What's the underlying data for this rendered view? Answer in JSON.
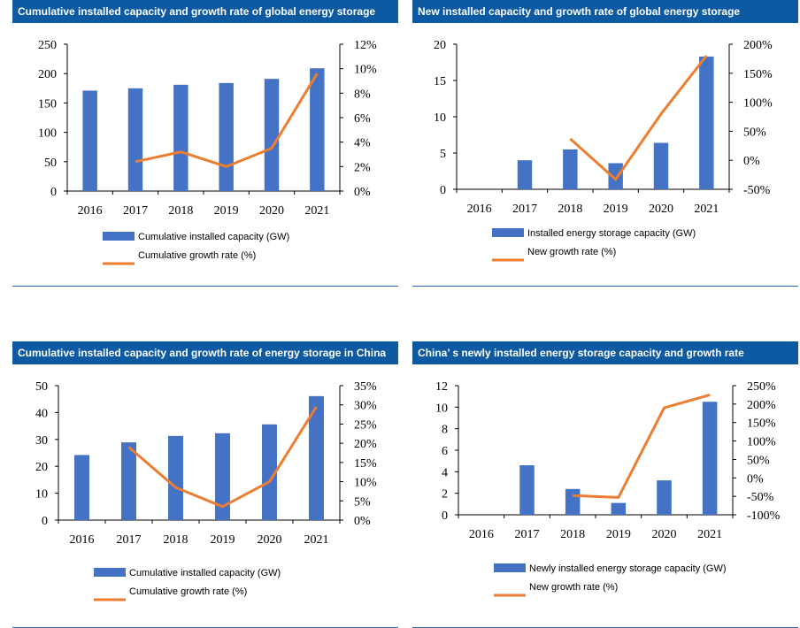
{
  "colors": {
    "header_bg": "#0d5aa3",
    "bar": "#4472c4",
    "line": "#ed7d31"
  },
  "chart_data": [
    {
      "type": "bar+line",
      "title": "Cumulative installed capacity and growth rate of global energy storage",
      "categories": [
        "2016",
        "2017",
        "2018",
        "2019",
        "2020",
        "2021"
      ],
      "bar_series": {
        "name": "Cumulative installed capacity (GW)",
        "values": [
          171,
          175,
          181,
          184,
          191,
          209
        ]
      },
      "line_series": {
        "name": "Cumulative growth rate (%)",
        "values": [
          null,
          2.4,
          3.2,
          2.0,
          3.5,
          9.6
        ]
      },
      "y_left": {
        "min": 0,
        "max": 250,
        "ticks": [
          "0",
          "50",
          "100",
          "150",
          "200",
          "250"
        ]
      },
      "y_right": {
        "min": 0,
        "max": 12,
        "ticks": [
          "0%",
          "2%",
          "4%",
          "6%",
          "8%",
          "10%",
          "12%"
        ]
      }
    },
    {
      "type": "bar+line",
      "title": "New installed capacity and growth rate of global energy storage",
      "categories": [
        "2016",
        "2017",
        "2018",
        "2019",
        "2020",
        "2021"
      ],
      "bar_series": {
        "name": "Installed energy storage capacity (GW)",
        "values": [
          0,
          4.0,
          5.5,
          3.6,
          6.4,
          18.3
        ]
      },
      "line_series": {
        "name": "New growth rate (%)",
        "values": [
          null,
          null,
          37,
          -33,
          80,
          180
        ]
      },
      "y_left": {
        "min": 0,
        "max": 20,
        "ticks": [
          "0",
          "5",
          "10",
          "15",
          "20"
        ]
      },
      "y_right": {
        "min": -50,
        "max": 200,
        "ticks": [
          "-50%",
          "0%",
          "50%",
          "100%",
          "150%",
          "200%"
        ]
      }
    },
    {
      "type": "bar+line",
      "title": "Cumulative installed capacity and growth rate of energy storage in China",
      "categories": [
        "2016",
        "2017",
        "2018",
        "2019",
        "2020",
        "2021"
      ],
      "bar_series": {
        "name": "Cumulative installed capacity (GW)",
        "values": [
          24.2,
          28.9,
          31.3,
          32.3,
          35.6,
          46.1
        ]
      },
      "line_series": {
        "name": "Cumulative growth rate (%)",
        "values": [
          null,
          19.0,
          8.5,
          3.5,
          10.0,
          29.5
        ]
      },
      "y_left": {
        "min": 0,
        "max": 50,
        "ticks": [
          "0",
          "10",
          "20",
          "30",
          "40",
          "50"
        ]
      },
      "y_right": {
        "min": 0,
        "max": 35,
        "ticks": [
          "0%",
          "5%",
          "10%",
          "15%",
          "20%",
          "25%",
          "30%",
          "35%"
        ]
      }
    },
    {
      "type": "bar+line",
      "title": "China’ s newly installed energy storage capacity and growth rate",
      "categories": [
        "2016",
        "2017",
        "2018",
        "2019",
        "2020",
        "2021"
      ],
      "bar_series": {
        "name": "Newly installed energy storage capacity (GW)",
        "values": [
          0,
          4.6,
          2.4,
          1.1,
          3.2,
          10.5
        ]
      },
      "line_series": {
        "name": "New growth rate (%)",
        "values": [
          null,
          null,
          -48,
          -53,
          190,
          225
        ]
      },
      "y_left": {
        "min": 0,
        "max": 12,
        "ticks": [
          "0",
          "2",
          "4",
          "6",
          "8",
          "10",
          "12"
        ]
      },
      "y_right": {
        "min": -100,
        "max": 250,
        "ticks": [
          "-100%",
          "-50%",
          "0%",
          "50%",
          "100%",
          "150%",
          "200%",
          "250%"
        ]
      }
    }
  ]
}
